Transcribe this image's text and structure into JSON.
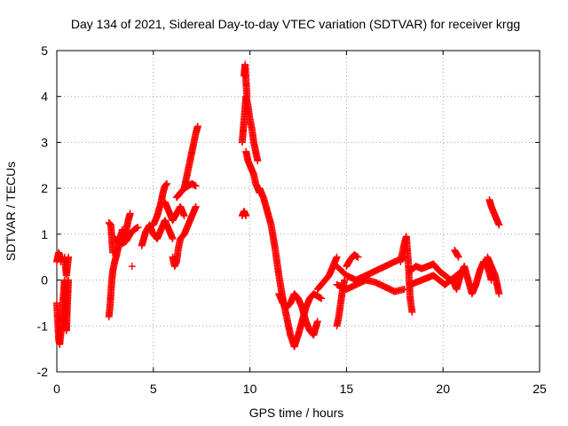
{
  "chart_data": {
    "type": "scatter",
    "title": "Day 134 of 2021, Sidereal Day-to-day VTEC variation (SDTVAR) for receiver krgg",
    "xlabel": "GPS time / hours",
    "ylabel": "SDTVAR / TECUs",
    "xlim": [
      0,
      25
    ],
    "ylim": [
      -2,
      5
    ],
    "xticks": [
      0,
      5,
      10,
      15,
      20,
      25
    ],
    "yticks": [
      -2,
      -1,
      0,
      1,
      2,
      3,
      4,
      5
    ],
    "grid": true,
    "legend": "none",
    "marker": "+",
    "series_color": "#ff0000",
    "series": [
      {
        "name": "SDTVAR",
        "segments": [
          {
            "x": [
              0.0,
              0.05,
              0.1,
              0.15,
              0.2
            ],
            "y": [
              0.4,
              0.5,
              0.6,
              0.55,
              0.4
            ]
          },
          {
            "x": [
              0.0,
              0.05,
              0.1,
              0.15,
              0.2,
              0.25,
              0.3,
              0.35,
              0.4,
              0.45,
              0.5
            ],
            "y": [
              -0.5,
              -0.9,
              -1.3,
              -1.4,
              -1.2,
              -1.0,
              -0.6,
              -0.3,
              0.0,
              -0.4,
              -0.8
            ]
          },
          {
            "x": [
              0.4,
              0.45,
              0.5,
              0.55,
              0.6
            ],
            "y": [
              -0.8,
              -1.0,
              -1.1,
              -0.5,
              0.0
            ]
          },
          {
            "x": [
              0.4,
              0.45,
              0.5,
              0.55,
              0.6
            ],
            "y": [
              0.5,
              0.3,
              0.1,
              0.3,
              0.5
            ]
          },
          {
            "x": [
              2.7,
              2.8,
              2.85,
              2.9
            ],
            "y": [
              1.25,
              1.2,
              0.9,
              0.6
            ]
          },
          {
            "x": [
              2.7,
              2.75,
              2.8,
              2.85,
              2.9,
              3.0,
              3.1,
              3.2,
              3.3,
              3.4
            ],
            "y": [
              -0.8,
              -0.6,
              -0.3,
              0.0,
              0.2,
              0.4,
              0.55,
              0.75,
              0.95,
              1.1
            ]
          },
          {
            "x": [
              3.4,
              3.5,
              3.6,
              3.7,
              3.8
            ],
            "y": [
              0.8,
              0.9,
              1.1,
              1.3,
              1.45
            ]
          },
          {
            "x": [
              3.0,
              3.2,
              3.4,
              3.6,
              3.8,
              4.0,
              4.2
            ],
            "y": [
              0.9,
              0.85,
              0.8,
              0.85,
              1.0,
              1.1,
              1.15
            ]
          },
          {
            "x": [
              3.9
            ],
            "y": [
              0.3
            ]
          },
          {
            "x": [
              4.4,
              4.5,
              4.6,
              4.8,
              5.0,
              5.2,
              5.4,
              5.6,
              5.8,
              6.0
            ],
            "y": [
              0.75,
              0.9,
              1.05,
              1.2,
              1.0,
              0.9,
              1.1,
              1.3,
              1.1,
              0.9
            ]
          },
          {
            "x": [
              5.0,
              5.2,
              5.4,
              5.5,
              5.6,
              5.7
            ],
            "y": [
              1.2,
              1.4,
              1.7,
              1.9,
              2.05,
              2.1
            ]
          },
          {
            "x": [
              5.6,
              5.8,
              6.0,
              6.2,
              6.4,
              6.6
            ],
            "y": [
              1.7,
              1.5,
              1.3,
              1.45,
              1.6,
              1.4
            ]
          },
          {
            "x": [
              6.0,
              6.1,
              6.2,
              6.3,
              6.4,
              6.6,
              6.8,
              7.0,
              7.2
            ],
            "y": [
              0.5,
              0.3,
              0.4,
              0.7,
              0.9,
              1.0,
              1.2,
              1.4,
              1.6
            ]
          },
          {
            "x": [
              6.2,
              6.4,
              6.6,
              6.8,
              7.0,
              7.2
            ],
            "y": [
              1.8,
              1.9,
              2.0,
              2.05,
              2.1,
              2.05
            ]
          },
          {
            "x": [
              6.6,
              6.7,
              6.8,
              6.9,
              7.0,
              7.1,
              7.2,
              7.3
            ],
            "y": [
              2.0,
              2.2,
              2.4,
              2.6,
              2.8,
              3.0,
              3.2,
              3.35
            ]
          },
          {
            "x": [
              9.6,
              9.7,
              9.8
            ],
            "y": [
              1.4,
              1.5,
              1.4
            ]
          },
          {
            "x": [
              9.6,
              9.7,
              9.8,
              9.9,
              10.0,
              10.1,
              10.2,
              10.3,
              10.4
            ],
            "y": [
              3.0,
              3.5,
              4.0,
              3.8,
              3.5,
              3.3,
              3.0,
              2.8,
              2.6
            ]
          },
          {
            "x": [
              9.7,
              9.75,
              9.8,
              9.85
            ],
            "y": [
              4.45,
              4.7,
              4.3,
              4.0
            ]
          },
          {
            "x": [
              9.8,
              9.9,
              10.0,
              10.1,
              10.2,
              10.3,
              10.4,
              10.5
            ],
            "y": [
              2.8,
              2.6,
              2.5,
              2.4,
              2.3,
              2.1,
              2.0,
              1.9
            ]
          },
          {
            "x": [
              10.5,
              10.7,
              10.9,
              11.1,
              11.3,
              11.5,
              11.7,
              11.9,
              12.1,
              12.3
            ],
            "y": [
              2.0,
              1.8,
              1.5,
              1.2,
              0.7,
              0.1,
              -0.4,
              -0.8,
              -1.2,
              -1.45
            ]
          },
          {
            "x": [
              11.5,
              11.7,
              11.9,
              12.1,
              12.3,
              12.5,
              12.7,
              12.9,
              13.1,
              13.3,
              13.5
            ],
            "y": [
              -0.3,
              -0.5,
              -0.6,
              -0.5,
              -0.3,
              -0.4,
              -0.6,
              -0.9,
              -1.1,
              -1.2,
              -0.9
            ]
          },
          {
            "x": [
              12.3,
              12.5,
              12.7,
              12.9,
              13.1,
              13.3,
              13.5,
              13.7
            ],
            "y": [
              -1.45,
              -1.2,
              -0.9,
              -0.6,
              -0.4,
              -0.3,
              -0.35,
              -0.4
            ]
          },
          {
            "x": [
              13.5,
              13.7,
              13.9,
              14.1,
              14.3,
              14.5
            ],
            "y": [
              -0.2,
              -0.1,
              0.0,
              0.1,
              0.3,
              0.5
            ]
          },
          {
            "x": [
              14.5,
              14.6,
              14.7,
              14.8,
              14.9
            ],
            "y": [
              -1.0,
              -0.8,
              -0.5,
              -0.2,
              0.0
            ]
          },
          {
            "x": [
              14.5,
              15.0,
              15.5,
              16.0,
              16.5,
              17.0,
              17.5,
              18.0
            ],
            "y": [
              -0.1,
              -0.2,
              -0.1,
              0.0,
              -0.05,
              -0.15,
              -0.25,
              -0.2
            ]
          },
          {
            "x": [
              14.5,
              15.0,
              15.5,
              16.0,
              16.5,
              17.0,
              17.5,
              18.0
            ],
            "y": [
              0.3,
              0.1,
              0.0,
              0.1,
              0.2,
              0.3,
              0.4,
              0.5
            ]
          },
          {
            "x": [
              15.0,
              15.2,
              15.4,
              15.6
            ],
            "y": [
              0.3,
              0.45,
              0.55,
              0.5
            ]
          },
          {
            "x": [
              17.8,
              17.9,
              18.0,
              18.1,
              18.2,
              18.3,
              18.4
            ],
            "y": [
              0.4,
              0.6,
              0.8,
              0.95,
              0.4,
              -0.4,
              -0.7
            ]
          },
          {
            "x": [
              18.3,
              18.6,
              18.9,
              19.2,
              19.5,
              19.8,
              20.1,
              20.4,
              20.7,
              21.0
            ],
            "y": [
              0.2,
              0.3,
              0.25,
              0.3,
              0.35,
              0.2,
              0.1,
              0.0,
              0.1,
              0.2
            ]
          },
          {
            "x": [
              18.3,
              18.6,
              18.9,
              19.2,
              19.5,
              19.8,
              20.1,
              20.4
            ],
            "y": [
              -0.1,
              -0.05,
              0.0,
              0.05,
              0.1,
              0.0,
              -0.1,
              0.0
            ]
          },
          {
            "x": [
              20.5,
              20.7,
              20.9,
              21.1,
              21.3,
              21.5,
              21.7,
              21.9,
              22.1,
              22.3,
              22.5
            ],
            "y": [
              0.0,
              -0.2,
              0.1,
              0.3,
              0.0,
              -0.3,
              -0.1,
              0.2,
              0.4,
              0.3,
              0.0
            ]
          },
          {
            "x": [
              20.6,
              20.8
            ],
            "y": [
              0.65,
              0.5
            ]
          },
          {
            "x": [
              22.3,
              22.5,
              22.7,
              22.9
            ],
            "y": [
              0.5,
              0.3,
              0.1,
              -0.3
            ]
          },
          {
            "x": [
              22.4,
              22.5,
              22.6,
              22.7,
              22.8,
              22.9
            ],
            "y": [
              1.75,
              1.6,
              1.5,
              1.4,
              1.3,
              1.2
            ]
          }
        ]
      }
    ]
  }
}
